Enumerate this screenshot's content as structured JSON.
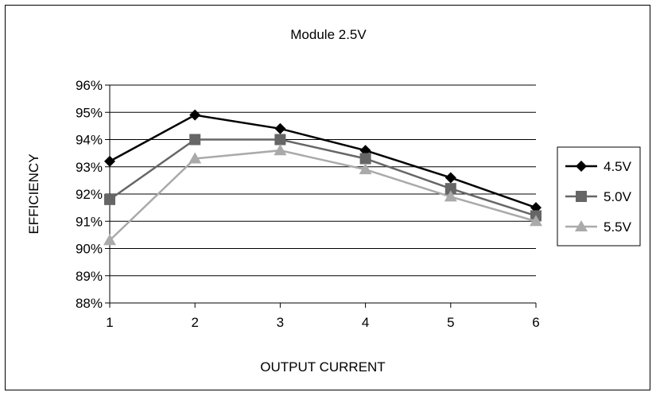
{
  "chart_data": {
    "type": "line",
    "title": "Module 2.5V",
    "xlabel": "OUTPUT CURRENT",
    "ylabel": "EFFICIENCY",
    "x": [
      1,
      2,
      3,
      4,
      5,
      6
    ],
    "x_tick_labels": [
      "1",
      "2",
      "3",
      "4",
      "5",
      "6"
    ],
    "ylim": [
      88,
      96
    ],
    "y_tick_values": [
      88,
      89,
      90,
      91,
      92,
      93,
      94,
      95,
      96
    ],
    "y_tick_labels": [
      "88%",
      "89%",
      "90%",
      "91%",
      "92%",
      "93%",
      "94%",
      "95%",
      "96%"
    ],
    "grid": "horizontal",
    "legend_position": "right",
    "series": [
      {
        "name": "4.5V",
        "values": [
          93.2,
          94.9,
          94.4,
          93.6,
          92.6,
          91.5
        ],
        "color": "#000000",
        "marker": "diamond"
      },
      {
        "name": "5.0V",
        "values": [
          91.8,
          94.0,
          94.0,
          93.3,
          92.2,
          91.2
        ],
        "color": "#666666",
        "marker": "square"
      },
      {
        "name": "5.5V",
        "values": [
          90.3,
          93.3,
          93.6,
          92.9,
          91.9,
          91.0
        ],
        "color": "#aaaaaa",
        "marker": "triangle"
      }
    ]
  }
}
